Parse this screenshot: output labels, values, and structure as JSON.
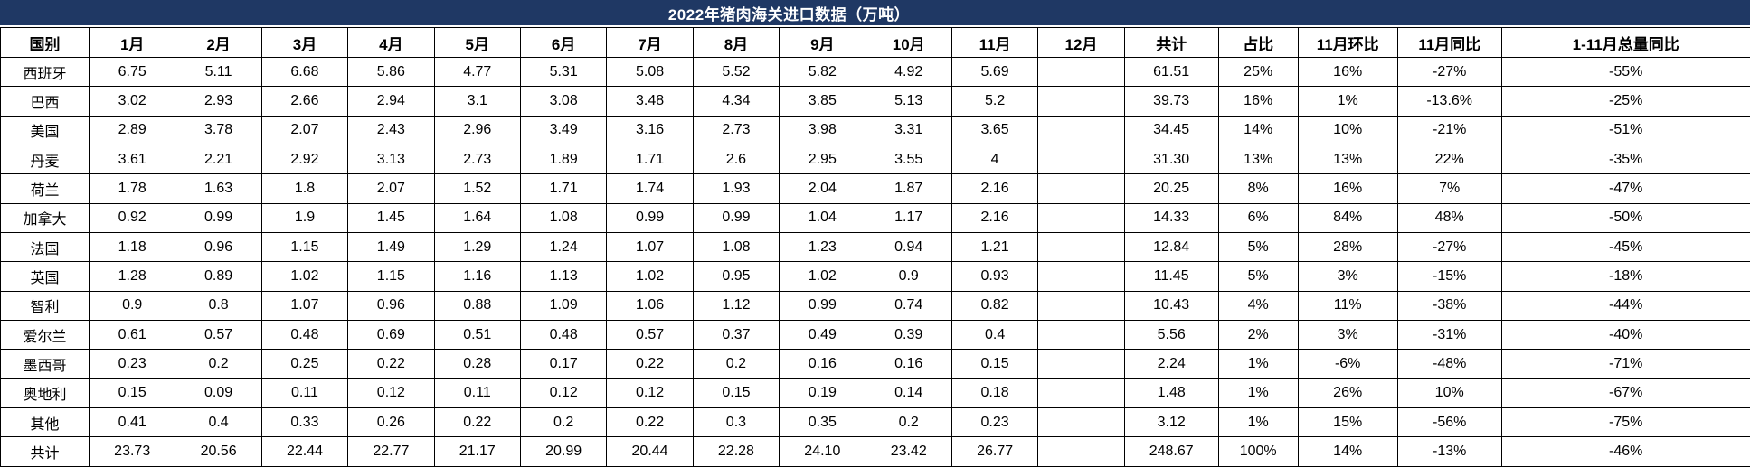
{
  "title": "2022年猪肉海关进口数据（万吨）",
  "colors": {
    "title_bg": "#1F3864",
    "title_text": "#FFFFFF",
    "grid": "#000000",
    "cell_bg": "#FFFFFF",
    "cell_text": "#000000"
  },
  "table": {
    "columns": [
      "国别",
      "1月",
      "2月",
      "3月",
      "4月",
      "5月",
      "6月",
      "7月",
      "8月",
      "9月",
      "10月",
      "11月",
      "12月",
      "共计",
      "占比",
      "11月环比",
      "11月同比",
      "1-11月总量同比"
    ],
    "rows": [
      {
        "label": "西班牙",
        "cells": [
          "6.75",
          "5.11",
          "6.68",
          "5.86",
          "4.77",
          "5.31",
          "5.08",
          "5.52",
          "5.82",
          "4.92",
          "5.69",
          "",
          "61.51",
          "25%",
          "16%",
          "-27%",
          "-55%"
        ]
      },
      {
        "label": "巴西",
        "cells": [
          "3.02",
          "2.93",
          "2.66",
          "2.94",
          "3.1",
          "3.08",
          "3.48",
          "4.34",
          "3.85",
          "5.13",
          "5.2",
          "",
          "39.73",
          "16%",
          "1%",
          "-13.6%",
          "-25%"
        ]
      },
      {
        "label": "美国",
        "cells": [
          "2.89",
          "3.78",
          "2.07",
          "2.43",
          "2.96",
          "3.49",
          "3.16",
          "2.73",
          "3.98",
          "3.31",
          "3.65",
          "",
          "34.45",
          "14%",
          "10%",
          "-21%",
          "-51%"
        ]
      },
      {
        "label": "丹麦",
        "cells": [
          "3.61",
          "2.21",
          "2.92",
          "3.13",
          "2.73",
          "1.89",
          "1.71",
          "2.6",
          "2.95",
          "3.55",
          "4",
          "",
          "31.30",
          "13%",
          "13%",
          "22%",
          "-35%"
        ]
      },
      {
        "label": "荷兰",
        "cells": [
          "1.78",
          "1.63",
          "1.8",
          "2.07",
          "1.52",
          "1.71",
          "1.74",
          "1.93",
          "2.04",
          "1.87",
          "2.16",
          "",
          "20.25",
          "8%",
          "16%",
          "7%",
          "-47%"
        ]
      },
      {
        "label": "加拿大",
        "cells": [
          "0.92",
          "0.99",
          "1.9",
          "1.45",
          "1.64",
          "1.08",
          "0.99",
          "0.99",
          "1.04",
          "1.17",
          "2.16",
          "",
          "14.33",
          "6%",
          "84%",
          "48%",
          "-50%"
        ]
      },
      {
        "label": "法国",
        "cells": [
          "1.18",
          "0.96",
          "1.15",
          "1.49",
          "1.29",
          "1.24",
          "1.07",
          "1.08",
          "1.23",
          "0.94",
          "1.21",
          "",
          "12.84",
          "5%",
          "28%",
          "-27%",
          "-45%"
        ]
      },
      {
        "label": "英国",
        "cells": [
          "1.28",
          "0.89",
          "1.02",
          "1.15",
          "1.16",
          "1.13",
          "1.02",
          "0.95",
          "1.02",
          "0.9",
          "0.93",
          "",
          "11.45",
          "5%",
          "3%",
          "-15%",
          "-18%"
        ]
      },
      {
        "label": "智利",
        "cells": [
          "0.9",
          "0.8",
          "1.07",
          "0.96",
          "0.88",
          "1.09",
          "1.06",
          "1.12",
          "0.99",
          "0.74",
          "0.82",
          "",
          "10.43",
          "4%",
          "11%",
          "-38%",
          "-44%"
        ]
      },
      {
        "label": "爱尔兰",
        "cells": [
          "0.61",
          "0.57",
          "0.48",
          "0.69",
          "0.51",
          "0.48",
          "0.57",
          "0.37",
          "0.49",
          "0.39",
          "0.4",
          "",
          "5.56",
          "2%",
          "3%",
          "-31%",
          "-40%"
        ]
      },
      {
        "label": "墨西哥",
        "cells": [
          "0.23",
          "0.2",
          "0.25",
          "0.22",
          "0.28",
          "0.17",
          "0.22",
          "0.2",
          "0.16",
          "0.16",
          "0.15",
          "",
          "2.24",
          "1%",
          "-6%",
          "-48%",
          "-71%"
        ]
      },
      {
        "label": "奥地利",
        "cells": [
          "0.15",
          "0.09",
          "0.11",
          "0.12",
          "0.11",
          "0.12",
          "0.12",
          "0.15",
          "0.19",
          "0.14",
          "0.18",
          "",
          "1.48",
          "1%",
          "26%",
          "10%",
          "-67%"
        ]
      },
      {
        "label": "其他",
        "cells": [
          "0.41",
          "0.4",
          "0.33",
          "0.26",
          "0.22",
          "0.2",
          "0.22",
          "0.3",
          "0.35",
          "0.2",
          "0.23",
          "",
          "3.12",
          "1%",
          "15%",
          "-56%",
          "-75%"
        ]
      },
      {
        "label": "共计",
        "cells": [
          "23.73",
          "20.56",
          "22.44",
          "22.77",
          "21.17",
          "20.99",
          "20.44",
          "22.28",
          "24.10",
          "23.42",
          "26.77",
          "",
          "248.67",
          "100%",
          "14%",
          "-13%",
          "-46%"
        ]
      }
    ]
  }
}
